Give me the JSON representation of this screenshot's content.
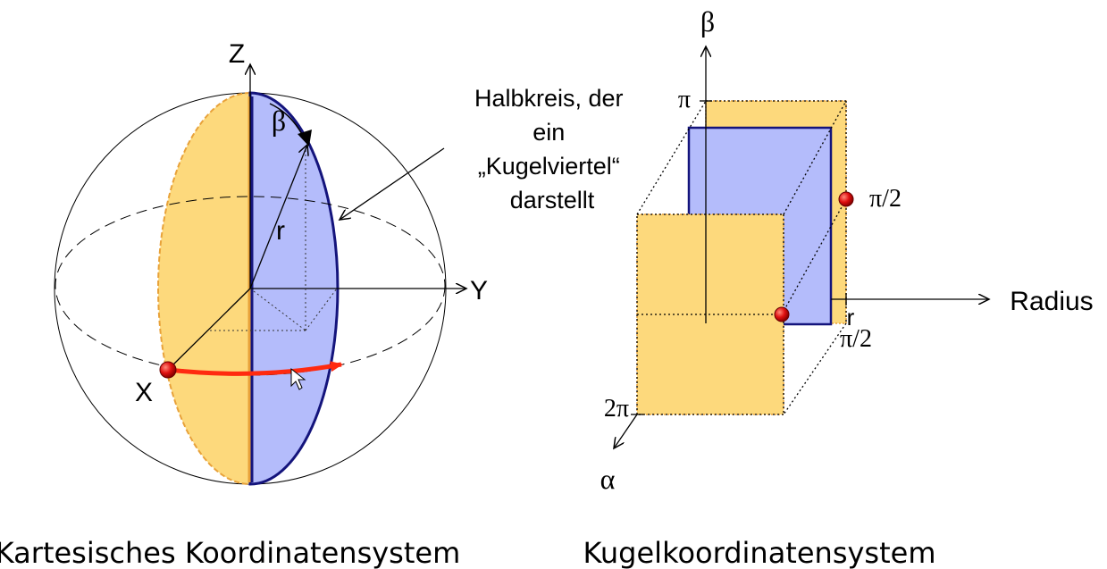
{
  "left_diagram": {
    "labels": {
      "z_axis": "Z",
      "y_axis": "Y",
      "x_axis": "X",
      "radius": "r",
      "beta": "β"
    },
    "annotation_lines": [
      "Halbkreis, der",
      "ein",
      "„Kugelviertel“",
      "darstellt"
    ],
    "caption": "Kartesisches Koordinatensystem"
  },
  "right_diagram": {
    "labels": {
      "beta_axis": "β",
      "alpha_axis": "α",
      "radius_axis": "Radius",
      "tick_pi": "π",
      "tick_pi_half_upper": "π/2",
      "tick_r": "r",
      "tick_pi_half_lower": "π/2",
      "tick_two_pi": "2π"
    },
    "caption": "Kugelkoordinatensystem"
  },
  "colors": {
    "orange_fill": "#fdd97c",
    "orange_edge": "#e8a23a",
    "blue_fill": "#b4bcfb",
    "blue_edge": "#14147c",
    "red_point": "#e01010",
    "red_arc": "#ff2a10"
  }
}
